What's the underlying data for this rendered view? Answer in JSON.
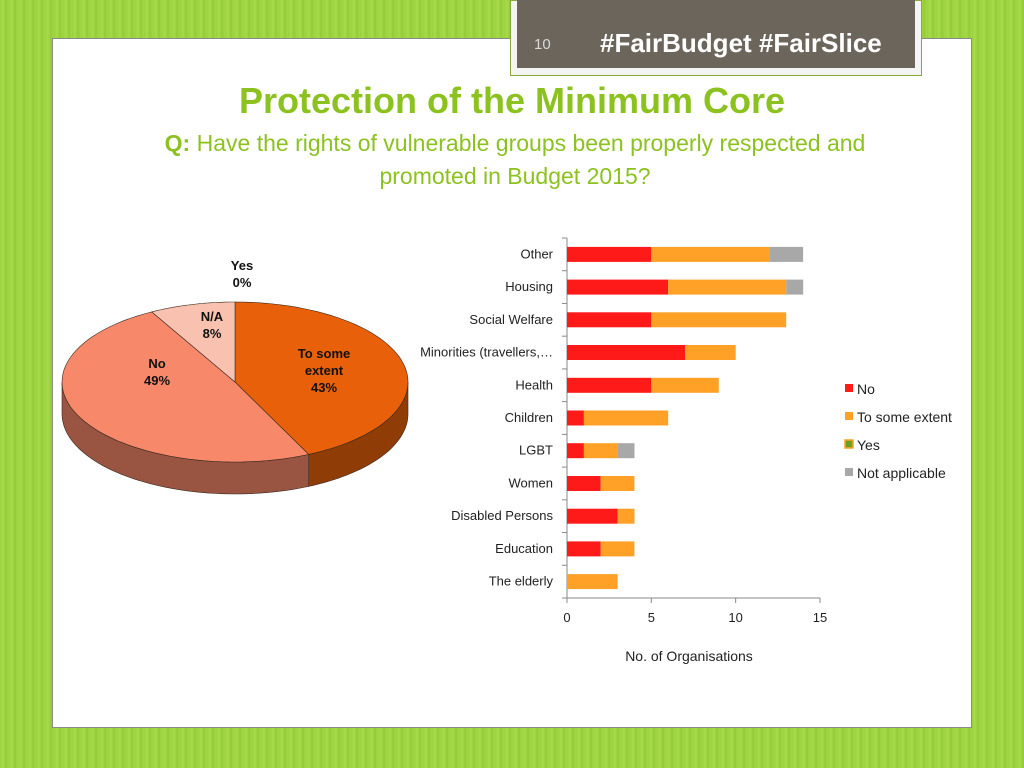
{
  "header": {
    "slide_number": "10",
    "hashtags": "#FairBudget #FairSlice"
  },
  "title": "Protection of the Minimum Core",
  "question": {
    "prefix": "Q:",
    "text": "Have the rights of vulnerable groups been properly respected and promoted in Budget 2015?"
  },
  "colors": {
    "green_accent": "#8cc21f",
    "header_bar": "#6b655c",
    "pie_to_some_extent": "#e8610a",
    "pie_no": "#f7886a",
    "pie_na": "#f9c2b0",
    "bar_no": "#ff1a1a",
    "bar_to_some_extent": "#ffa126",
    "bar_yes": "#6aa121",
    "bar_not_applicable": "#a8a8a8"
  },
  "chart_data": [
    {
      "type": "pie",
      "style": "3d",
      "slices": [
        {
          "label": "Yes",
          "value": 0,
          "display": "0%"
        },
        {
          "label": "To some extent",
          "value": 43,
          "display": "43%"
        },
        {
          "label": "No",
          "value": 49,
          "display": "49%"
        },
        {
          "label": "N/A",
          "value": 8,
          "display": "8%"
        }
      ]
    },
    {
      "type": "bar",
      "orientation": "horizontal",
      "stacked": true,
      "categories": [
        "Other",
        "Housing",
        "Social Welfare",
        "Minorities (travellers,…",
        "Health",
        "Children",
        "LGBT",
        "Women",
        "Disabled Persons",
        "Education",
        "The elderly"
      ],
      "series": [
        {
          "name": "No",
          "values": [
            5,
            6,
            5,
            7,
            5,
            1,
            1,
            2,
            3,
            2,
            0
          ]
        },
        {
          "name": "To some extent",
          "values": [
            7,
            7,
            8,
            3,
            4,
            5,
            2,
            2,
            1,
            2,
            3
          ]
        },
        {
          "name": "Yes",
          "values": [
            0,
            0,
            0,
            0,
            0,
            0,
            0,
            0,
            0,
            0,
            0
          ]
        },
        {
          "name": "Not applicable",
          "values": [
            2,
            1,
            0,
            0,
            0,
            0,
            1,
            0,
            0,
            0,
            0
          ]
        }
      ],
      "xticks": [
        "0",
        "5",
        "10",
        "15"
      ],
      "xlim": [
        0,
        15
      ],
      "xlabel": "No. of Organisations",
      "legend_position": "right"
    }
  ]
}
